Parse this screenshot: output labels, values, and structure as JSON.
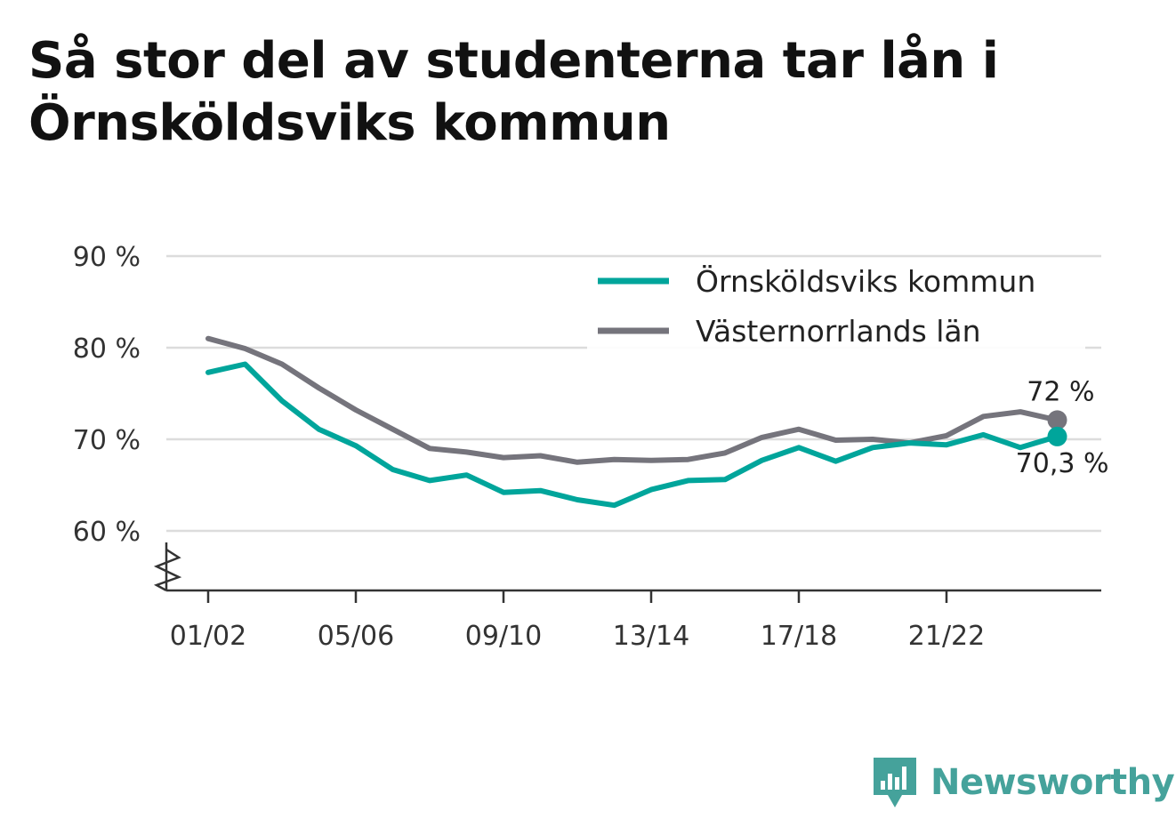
{
  "title": "Så stor del av studenterna tar lån i Örnsköldsviks kommun",
  "brand": {
    "name": "Newsworthy",
    "color": "#45a29b",
    "icon": "newsworthy-logo-icon"
  },
  "chart_data": {
    "type": "line",
    "title": "Så stor del av studenterna tar lån i Örnsköldsviks kommun",
    "xlabel": "",
    "ylabel": "",
    "x": [
      "01/02",
      "02/03",
      "03/04",
      "04/05",
      "05/06",
      "06/07",
      "07/08",
      "08/09",
      "09/10",
      "10/11",
      "11/12",
      "12/13",
      "13/14",
      "14/15",
      "15/16",
      "16/17",
      "17/18",
      "18/19",
      "19/20",
      "20/21",
      "21/22",
      "22/23",
      "23/24",
      "24/25"
    ],
    "x_tick_labels": [
      "01/02",
      "05/06",
      "09/10",
      "13/14",
      "17/18",
      "21/22"
    ],
    "y_ticks": [
      60,
      70,
      80,
      90
    ],
    "y_tick_labels": [
      "60 %",
      "70 %",
      "80 %",
      "90 %"
    ],
    "ylim": [
      53.5,
      90
    ],
    "axis_break": true,
    "grid": true,
    "legend_position": "top-right",
    "series": [
      {
        "name": "Örnsköldsviks kommun",
        "color": "#00a59b",
        "values": [
          77.3,
          78.2,
          74.2,
          71.1,
          69.3,
          66.7,
          65.5,
          66.1,
          64.2,
          64.4,
          63.4,
          62.8,
          64.5,
          65.5,
          65.6,
          67.7,
          69.1,
          67.6,
          69.1,
          69.6,
          69.4,
          70.5,
          69.1,
          70.3
        ],
        "end_label": "70,3 %"
      },
      {
        "name": "Västernorrlands län",
        "color": "#75747c",
        "values": [
          81.0,
          79.9,
          78.2,
          75.6,
          73.2,
          71.1,
          69.0,
          68.6,
          68.0,
          68.2,
          67.5,
          67.8,
          67.7,
          67.8,
          68.5,
          70.2,
          71.1,
          69.9,
          70.0,
          69.6,
          70.4,
          72.5,
          73.0,
          72.1
        ],
        "end_label": "72 %"
      }
    ]
  }
}
